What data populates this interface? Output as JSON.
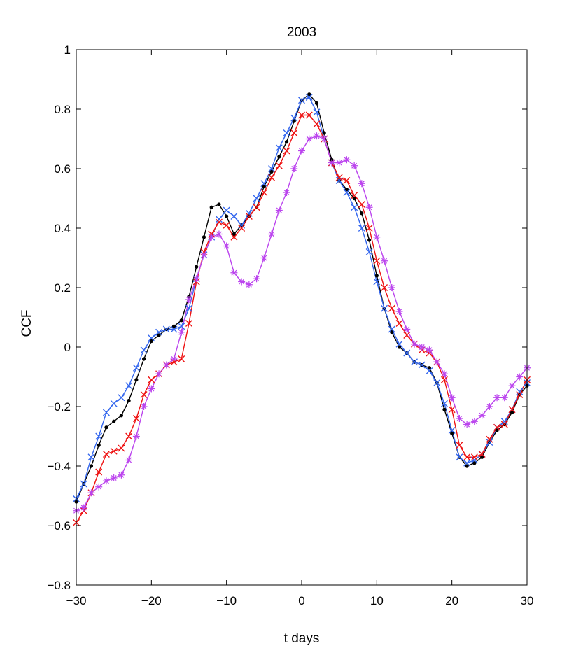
{
  "chart_data": {
    "type": "line",
    "title": "2003",
    "xlabel": "t days",
    "ylabel": "CCF",
    "xlim": [
      -30,
      30
    ],
    "ylim": [
      -0.8,
      1
    ],
    "xticks": [
      -30,
      -20,
      -10,
      0,
      10,
      20,
      30
    ],
    "yticks": [
      -0.8,
      -0.6,
      -0.4,
      -0.2,
      0,
      0.2,
      0.4,
      0.6,
      0.8,
      1
    ],
    "xtick_labels": [
      "−30",
      "−20",
      "−10",
      "0",
      "10",
      "20",
      "30"
    ],
    "ytick_labels": [
      "−0.8",
      "−0.6",
      "−0.4",
      "−0.2",
      "0",
      "0.2",
      "0.4",
      "0.6",
      "0.8",
      "1"
    ],
    "grid": false,
    "legend": "none",
    "x": [
      -30,
      -29,
      -28,
      -27,
      -26,
      -25,
      -24,
      -23,
      -22,
      -21,
      -20,
      -19,
      -18,
      -17,
      -16,
      -15,
      -14,
      -13,
      -12,
      -11,
      -10,
      -9,
      -8,
      -7,
      -6,
      -5,
      -4,
      -3,
      -2,
      -1,
      0,
      1,
      2,
      3,
      4,
      5,
      6,
      7,
      8,
      9,
      10,
      11,
      12,
      13,
      14,
      15,
      16,
      17,
      18,
      19,
      20,
      21,
      22,
      23,
      24,
      25,
      26,
      27,
      28,
      29,
      30
    ],
    "series": [
      {
        "color": "#000000",
        "marker": "dot",
        "values": [
          -0.52,
          -0.46,
          -0.4,
          -0.33,
          -0.27,
          -0.25,
          -0.23,
          -0.18,
          -0.11,
          -0.04,
          0.02,
          0.04,
          0.06,
          0.07,
          0.09,
          0.17,
          0.27,
          0.37,
          0.47,
          0.48,
          0.44,
          0.38,
          0.41,
          0.44,
          0.47,
          0.54,
          0.59,
          0.64,
          0.69,
          0.76,
          0.83,
          0.85,
          0.82,
          0.72,
          0.63,
          0.56,
          0.53,
          0.5,
          0.45,
          0.36,
          0.24,
          0.13,
          0.05,
          0.0,
          -0.02,
          -0.05,
          -0.06,
          -0.07,
          -0.12,
          -0.21,
          -0.29,
          -0.37,
          -0.4,
          -0.39,
          -0.37,
          -0.32,
          -0.28,
          -0.26,
          -0.22,
          -0.16,
          -0.13
        ]
      },
      {
        "color": "#3366ee",
        "marker": "x",
        "values": [
          -0.51,
          -0.46,
          -0.37,
          -0.3,
          -0.22,
          -0.19,
          -0.17,
          -0.13,
          -0.07,
          -0.01,
          0.03,
          0.05,
          0.06,
          0.06,
          0.07,
          0.13,
          0.23,
          0.31,
          0.37,
          0.43,
          0.46,
          0.44,
          0.41,
          0.45,
          0.5,
          0.55,
          0.6,
          0.67,
          0.72,
          0.77,
          0.83,
          0.84,
          0.79,
          0.7,
          0.62,
          0.56,
          0.52,
          0.47,
          0.4,
          0.32,
          0.22,
          0.13,
          0.06,
          0.01,
          -0.02,
          -0.05,
          -0.06,
          -0.08,
          -0.12,
          -0.19,
          -0.28,
          -0.37,
          -0.39,
          -0.38,
          -0.36,
          -0.32,
          -0.27,
          -0.25,
          -0.21,
          -0.15,
          -0.12
        ]
      },
      {
        "color": "#ee1111",
        "marker": "x",
        "values": [
          -0.59,
          -0.55,
          -0.49,
          -0.42,
          -0.36,
          -0.35,
          -0.34,
          -0.3,
          -0.24,
          -0.16,
          -0.11,
          -0.09,
          -0.06,
          -0.05,
          -0.04,
          0.08,
          0.22,
          0.32,
          0.38,
          0.42,
          0.41,
          0.37,
          0.4,
          0.44,
          0.47,
          0.52,
          0.57,
          0.61,
          0.66,
          0.72,
          0.78,
          0.78,
          0.75,
          0.7,
          0.62,
          0.57,
          0.56,
          0.51,
          0.48,
          0.4,
          0.29,
          0.2,
          0.13,
          0.08,
          0.04,
          0.01,
          -0.01,
          -0.02,
          -0.05,
          -0.11,
          -0.21,
          -0.33,
          -0.37,
          -0.37,
          -0.36,
          -0.31,
          -0.27,
          -0.26,
          -0.21,
          -0.16,
          -0.11
        ]
      },
      {
        "color": "#bb44ee",
        "marker": "asterisk",
        "values": [
          -0.55,
          -0.54,
          -0.49,
          -0.47,
          -0.45,
          -0.44,
          -0.43,
          -0.38,
          -0.3,
          -0.2,
          -0.14,
          -0.09,
          -0.06,
          -0.04,
          0.05,
          0.16,
          0.23,
          0.31,
          0.37,
          0.38,
          0.34,
          0.25,
          0.22,
          0.21,
          0.23,
          0.3,
          0.38,
          0.46,
          0.52,
          0.6,
          0.66,
          0.7,
          0.71,
          0.7,
          0.62,
          0.62,
          0.63,
          0.61,
          0.55,
          0.47,
          0.37,
          0.29,
          0.2,
          0.12,
          0.06,
          0.01,
          -0.0,
          -0.01,
          -0.05,
          -0.09,
          -0.17,
          -0.24,
          -0.26,
          -0.25,
          -0.23,
          -0.2,
          -0.17,
          -0.17,
          -0.13,
          -0.1,
          -0.07
        ]
      }
    ]
  }
}
